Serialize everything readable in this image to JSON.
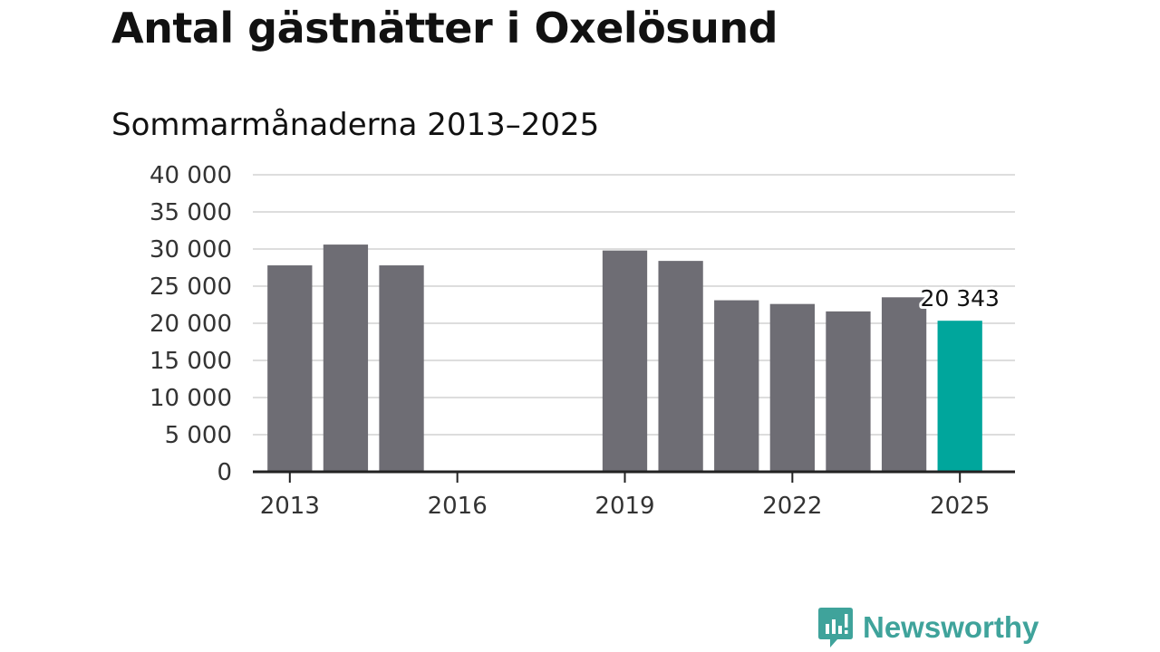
{
  "title": "Antal gästnätter i Oxelösund",
  "subtitle": "Sommarmånaderna 2013–2025",
  "brand": {
    "name": "Newsworthy",
    "color": "#3fa39b",
    "icon": "newsworthy-logo-icon"
  },
  "colors": {
    "bar": "#6e6d74",
    "highlight": "#00a69c",
    "grid": "#dddddd",
    "axis": "#222222"
  },
  "chart_data": {
    "type": "bar",
    "categories": [
      "2013",
      "2014",
      "2015",
      "2016",
      "2017",
      "2018",
      "2019",
      "2020",
      "2021",
      "2022",
      "2023",
      "2024",
      "2025"
    ],
    "values": [
      27800,
      30600,
      27800,
      null,
      null,
      null,
      29800,
      28400,
      23100,
      22600,
      21600,
      23500,
      20343
    ],
    "highlight_index": 12,
    "data_labels": [
      {
        "index": 12,
        "text": "20 343"
      }
    ],
    "xticks": [
      "2013",
      "2016",
      "2019",
      "2022",
      "2025"
    ],
    "yticks": [
      "0",
      "5 000",
      "10 000",
      "15 000",
      "20 000",
      "25 000",
      "30 000",
      "35 000",
      "40 000"
    ],
    "ylim": [
      0,
      40000
    ],
    "grid": true,
    "legend": "none"
  }
}
